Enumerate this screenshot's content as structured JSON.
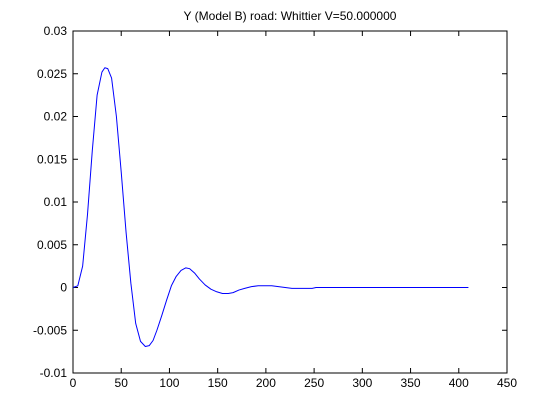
{
  "chart_data": {
    "type": "line",
    "title": "Y (Model B) road: Whittier V=50.000000",
    "xlabel": "",
    "ylabel": "",
    "xlim": [
      0,
      450
    ],
    "ylim": [
      -0.01,
      0.03
    ],
    "x_ticks": [
      0,
      50,
      100,
      150,
      200,
      250,
      300,
      350,
      400,
      450
    ],
    "x_tick_labels": [
      "0",
      "50",
      "100",
      "150",
      "200",
      "250",
      "300",
      "350",
      "400",
      "450"
    ],
    "y_ticks": [
      -0.01,
      -0.005,
      0,
      0.005,
      0.01,
      0.015,
      0.02,
      0.025,
      0.03
    ],
    "y_tick_labels": [
      "-0.01",
      "-0.005",
      "0",
      "0.005",
      "0.01",
      "0.015",
      "0.02",
      "0.025",
      "0.03"
    ],
    "grid": false,
    "box": true,
    "line_color": "#0000ff",
    "series": [
      {
        "x": [
          0,
          5,
          10,
          15,
          20,
          25,
          30,
          33,
          36,
          40,
          45,
          50,
          55,
          60,
          65,
          70,
          75,
          79,
          83,
          87,
          92,
          97,
          102,
          107,
          112,
          117,
          121,
          126,
          131,
          137,
          143,
          149,
          155,
          161,
          166,
          172,
          178,
          185,
          192,
          199,
          206,
          213,
          220,
          227,
          234,
          241,
          248,
          252,
          258,
          265,
          275,
          290,
          310,
          340,
          380,
          410
        ],
        "y": [
          0,
          0.0002,
          0.0025,
          0.0085,
          0.016,
          0.0225,
          0.0252,
          0.0257,
          0.0256,
          0.0245,
          0.02,
          0.0135,
          0.0065,
          0.0005,
          -0.0042,
          -0.0063,
          -0.0069,
          -0.0068,
          -0.0062,
          -0.005,
          -0.0033,
          -0.0015,
          0.0002,
          0.0013,
          0.002,
          0.0023,
          0.0022,
          0.0017,
          0.001,
          0.0003,
          -0.0002,
          -0.0005,
          -0.0007,
          -0.0007,
          -0.0006,
          -0.0003,
          -0.0001,
          0.0001,
          0.0002,
          0.0002,
          0.0002,
          0.0001,
          0.0,
          -0.0001,
          -0.0001,
          -0.0001,
          -0.0001,
          0.0,
          0.0,
          0.0,
          0.0,
          0.0,
          0.0,
          0.0,
          0.0,
          0.0
        ]
      }
    ]
  }
}
